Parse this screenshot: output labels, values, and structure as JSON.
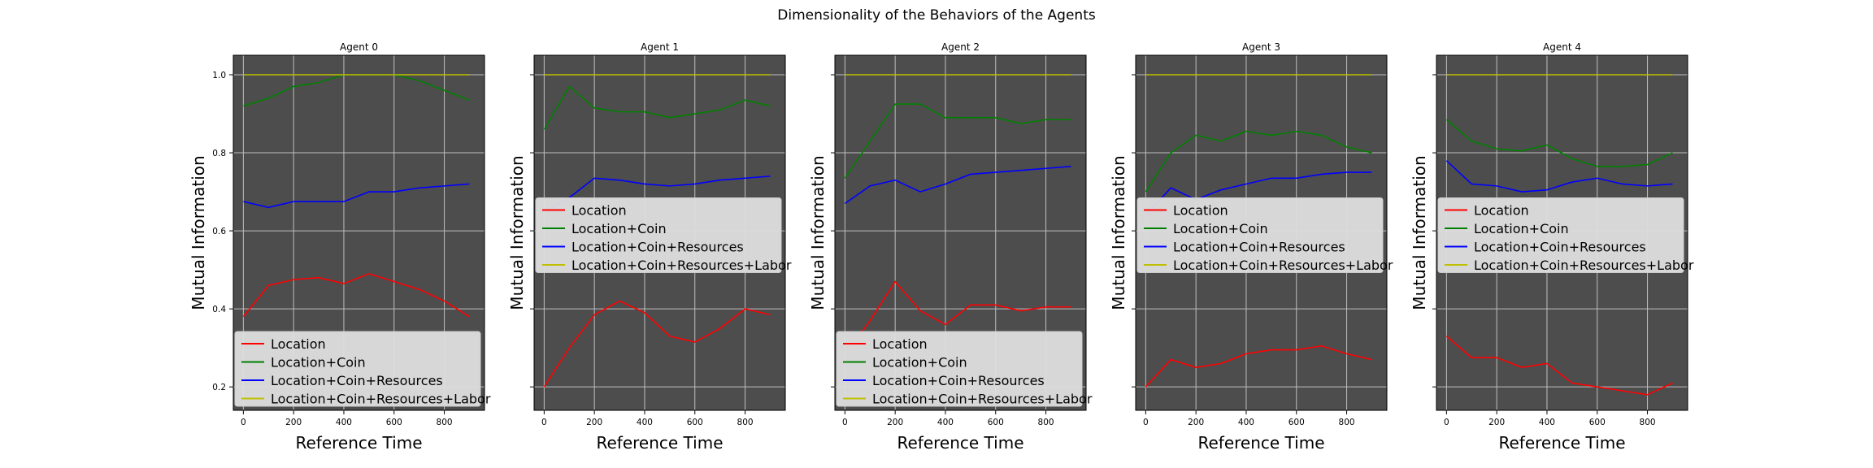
{
  "figure": {
    "suptitle": "Dimensionality of the Behaviors of the Agents"
  },
  "chart_data": [
    {
      "type": "line",
      "title": "Agent 0",
      "xlabel": "Reference Time",
      "ylabel": "Mutual Information",
      "xlim": [
        -40,
        960
      ],
      "ylim": [
        0.14,
        1.05
      ],
      "xticks": [
        0,
        200,
        400,
        600,
        800
      ],
      "yticks": [
        0.2,
        0.4,
        0.6,
        0.8,
        1.0
      ],
      "ytick_labels": [
        "0.2",
        "0.4",
        "0.6",
        "0.8",
        "1.0"
      ],
      "show_ytick_labels": true,
      "grid": true,
      "legend_position": "lower-right",
      "x": [
        0,
        100,
        200,
        300,
        400,
        500,
        600,
        700,
        800,
        900
      ],
      "series": [
        {
          "name": "Location",
          "color": "#ff0000",
          "values": [
            0.38,
            0.46,
            0.475,
            0.48,
            0.465,
            0.49,
            0.47,
            0.45,
            0.42,
            0.38
          ]
        },
        {
          "name": "Location+Coin",
          "color": "#008000",
          "values": [
            0.92,
            0.94,
            0.97,
            0.98,
            1.0,
            1.0,
            1.0,
            0.985,
            0.96,
            0.935
          ]
        },
        {
          "name": "Location+Coin+Resources",
          "color": "#0000ff",
          "values": [
            0.675,
            0.66,
            0.675,
            0.675,
            0.675,
            0.7,
            0.7,
            0.71,
            0.715,
            0.72
          ]
        },
        {
          "name": "Location+Coin+Resources+Labor",
          "color": "#bfbf00",
          "values": [
            1.0,
            1.0,
            1.0,
            1.0,
            1.0,
            1.0,
            1.0,
            1.0,
            1.0,
            1.0
          ]
        }
      ]
    },
    {
      "type": "line",
      "title": "Agent 1",
      "xlabel": "Reference Time",
      "ylabel": "Mutual Information",
      "xlim": [
        -40,
        960
      ],
      "ylim": [
        0.14,
        1.05
      ],
      "xticks": [
        0,
        200,
        400,
        600,
        800
      ],
      "yticks": [
        0.2,
        0.4,
        0.6,
        0.8,
        1.0
      ],
      "ytick_labels": [
        "0.2",
        "0.4",
        "0.6",
        "0.8",
        "1.0"
      ],
      "show_ytick_labels": false,
      "grid": true,
      "legend_position": "center-right",
      "x": [
        0,
        100,
        200,
        300,
        400,
        500,
        600,
        700,
        800,
        900
      ],
      "series": [
        {
          "name": "Location",
          "color": "#ff0000",
          "values": [
            0.2,
            0.3,
            0.385,
            0.42,
            0.39,
            0.33,
            0.315,
            0.35,
            0.4,
            0.385
          ]
        },
        {
          "name": "Location+Coin",
          "color": "#008000",
          "values": [
            0.86,
            0.97,
            0.915,
            0.905,
            0.905,
            0.89,
            0.9,
            0.91,
            0.935,
            0.92
          ]
        },
        {
          "name": "Location+Coin+Resources",
          "color": "#0000ff",
          "values": [
            0.65,
            0.685,
            0.735,
            0.73,
            0.72,
            0.715,
            0.72,
            0.73,
            0.735,
            0.74
          ]
        },
        {
          "name": "Location+Coin+Resources+Labor",
          "color": "#bfbf00",
          "values": [
            1.0,
            1.0,
            1.0,
            1.0,
            1.0,
            1.0,
            1.0,
            1.0,
            1.0,
            1.0
          ]
        }
      ]
    },
    {
      "type": "line",
      "title": "Agent 2",
      "xlabel": "Reference Time",
      "ylabel": "Mutual Information",
      "xlim": [
        -40,
        960
      ],
      "ylim": [
        0.14,
        1.05
      ],
      "xticks": [
        0,
        200,
        400,
        600,
        800
      ],
      "yticks": [
        0.2,
        0.4,
        0.6,
        0.8,
        1.0
      ],
      "ytick_labels": [
        "0.2",
        "0.4",
        "0.6",
        "0.8",
        "1.0"
      ],
      "show_ytick_labels": false,
      "grid": true,
      "legend_position": "lower-right",
      "x": [
        0,
        100,
        200,
        300,
        400,
        500,
        600,
        700,
        800,
        900
      ],
      "series": [
        {
          "name": "Location",
          "color": "#ff0000",
          "values": [
            0.28,
            0.37,
            0.47,
            0.395,
            0.36,
            0.41,
            0.41,
            0.395,
            0.405,
            0.405
          ]
        },
        {
          "name": "Location+Coin",
          "color": "#008000",
          "values": [
            0.735,
            0.83,
            0.925,
            0.925,
            0.89,
            0.89,
            0.89,
            0.875,
            0.885,
            0.885
          ]
        },
        {
          "name": "Location+Coin+Resources",
          "color": "#0000ff",
          "values": [
            0.67,
            0.715,
            0.73,
            0.7,
            0.72,
            0.745,
            0.75,
            0.755,
            0.76,
            0.765
          ]
        },
        {
          "name": "Location+Coin+Resources+Labor",
          "color": "#bfbf00",
          "values": [
            1.0,
            1.0,
            1.0,
            1.0,
            1.0,
            1.0,
            1.0,
            1.0,
            1.0,
            1.0
          ]
        }
      ]
    },
    {
      "type": "line",
      "title": "Agent 3",
      "xlabel": "Reference Time",
      "ylabel": "Mutual Information",
      "xlim": [
        -40,
        960
      ],
      "ylim": [
        0.14,
        1.05
      ],
      "xticks": [
        0,
        200,
        400,
        600,
        800
      ],
      "yticks": [
        0.2,
        0.4,
        0.6,
        0.8,
        1.0
      ],
      "ytick_labels": [
        "0.2",
        "0.4",
        "0.6",
        "0.8",
        "1.0"
      ],
      "show_ytick_labels": false,
      "grid": true,
      "legend_position": "center-right",
      "x": [
        0,
        100,
        200,
        300,
        400,
        500,
        600,
        700,
        800,
        900
      ],
      "series": [
        {
          "name": "Location",
          "color": "#ff0000",
          "values": [
            0.2,
            0.27,
            0.25,
            0.26,
            0.285,
            0.295,
            0.295,
            0.305,
            0.285,
            0.27
          ]
        },
        {
          "name": "Location+Coin",
          "color": "#008000",
          "values": [
            0.7,
            0.8,
            0.845,
            0.83,
            0.855,
            0.845,
            0.855,
            0.845,
            0.815,
            0.8
          ]
        },
        {
          "name": "Location+Coin+Resources",
          "color": "#0000ff",
          "values": [
            0.64,
            0.71,
            0.68,
            0.705,
            0.72,
            0.735,
            0.735,
            0.745,
            0.75,
            0.75
          ]
        },
        {
          "name": "Location+Coin+Resources+Labor",
          "color": "#bfbf00",
          "values": [
            1.0,
            1.0,
            1.0,
            1.0,
            1.0,
            1.0,
            1.0,
            1.0,
            1.0,
            1.0
          ]
        }
      ]
    },
    {
      "type": "line",
      "title": "Agent 4",
      "xlabel": "Reference Time",
      "ylabel": "Mutual Information",
      "xlim": [
        -40,
        960
      ],
      "ylim": [
        0.14,
        1.05
      ],
      "xticks": [
        0,
        200,
        400,
        600,
        800
      ],
      "yticks": [
        0.2,
        0.4,
        0.6,
        0.8,
        1.0
      ],
      "ytick_labels": [
        "0.2",
        "0.4",
        "0.6",
        "0.8",
        "1.0"
      ],
      "show_ytick_labels": false,
      "grid": true,
      "legend_position": "center-right",
      "x": [
        0,
        100,
        200,
        300,
        400,
        500,
        600,
        700,
        800,
        900
      ],
      "series": [
        {
          "name": "Location",
          "color": "#ff0000",
          "values": [
            0.33,
            0.275,
            0.275,
            0.25,
            0.26,
            0.21,
            0.2,
            0.19,
            0.18,
            0.21
          ]
        },
        {
          "name": "Location+Coin",
          "color": "#008000",
          "values": [
            0.885,
            0.83,
            0.81,
            0.805,
            0.82,
            0.785,
            0.765,
            0.765,
            0.77,
            0.8
          ]
        },
        {
          "name": "Location+Coin+Resources",
          "color": "#0000ff",
          "values": [
            0.78,
            0.72,
            0.715,
            0.7,
            0.705,
            0.725,
            0.735,
            0.72,
            0.715,
            0.72
          ]
        },
        {
          "name": "Location+Coin+Resources+Labor",
          "color": "#bfbf00",
          "values": [
            1.0,
            1.0,
            1.0,
            1.0,
            1.0,
            1.0,
            1.0,
            1.0,
            1.0,
            1.0
          ]
        }
      ]
    }
  ]
}
